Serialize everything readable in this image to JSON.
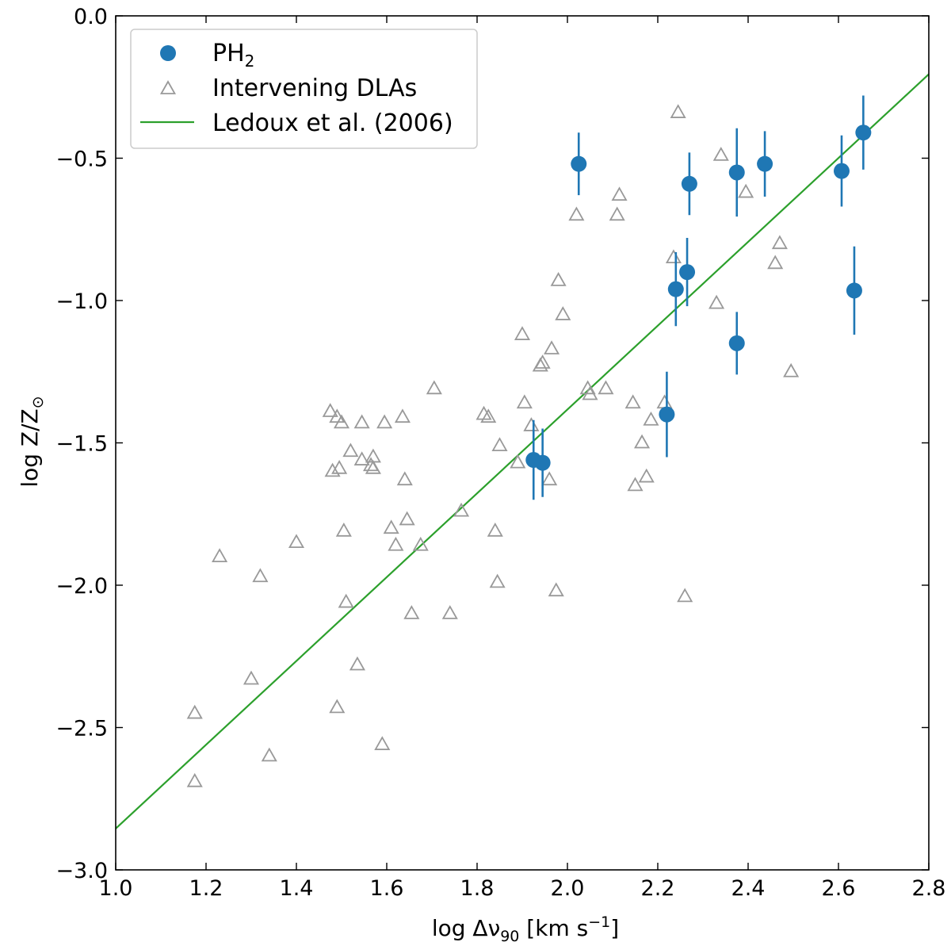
{
  "chart_data": {
    "type": "scatter",
    "xlabel": "log Δν",
    "xlabel_sub": "90",
    "xlabel_unit_open": " [km s",
    "xlabel_unit_sup": "−1",
    "xlabel_unit_close": "]",
    "ylabel": "log Z/Z",
    "ylabel_symbol": "⊙",
    "xlim": [
      1.0,
      2.8
    ],
    "ylim": [
      -3.0,
      0.0
    ],
    "xticks": [
      "1.0",
      "1.2",
      "1.4",
      "1.6",
      "1.8",
      "2.0",
      "2.2",
      "2.4",
      "2.6",
      "2.8"
    ],
    "yticks": [
      "0.0",
      "−0.5",
      "−1.0",
      "−1.5",
      "−2.0",
      "−2.5",
      "−3.0"
    ],
    "legend": {
      "position": "upper-left",
      "entries": [
        {
          "label": "PH",
          "sub": "2",
          "marker": "filled-circle",
          "color": "#1f77b4"
        },
        {
          "label": "Intervening DLAs",
          "marker": "open-triangle",
          "color": "#999999"
        },
        {
          "label": "Ledoux et al. (2006)",
          "marker": "line",
          "color": "#2ca02c"
        }
      ]
    },
    "series": [
      {
        "name": "PH2",
        "color": "#1f77b4",
        "x": [
          2.025,
          1.925,
          1.945,
          2.22,
          2.24,
          2.265,
          2.27,
          2.375,
          2.375,
          2.437,
          2.607,
          2.635,
          2.655
        ],
        "y": [
          -0.52,
          -1.56,
          -1.57,
          -1.4,
          -0.96,
          -0.9,
          -0.59,
          -0.55,
          -1.15,
          -0.52,
          -0.545,
          -0.965,
          -0.41
        ],
        "err": [
          0.11,
          0.14,
          0.12,
          0.15,
          0.13,
          0.12,
          0.11,
          0.155,
          0.11,
          0.115,
          0.125,
          0.155,
          0.13
        ]
      },
      {
        "name": "Intervening DLAs",
        "color": "#999999",
        "x": [
          1.175,
          1.175,
          1.23,
          1.3,
          1.32,
          1.34,
          1.4,
          1.475,
          1.48,
          1.49,
          1.49,
          1.495,
          1.5,
          1.505,
          1.51,
          1.52,
          1.535,
          1.545,
          1.545,
          1.565,
          1.57,
          1.57,
          1.59,
          1.595,
          1.61,
          1.62,
          1.635,
          1.64,
          1.645,
          1.655,
          1.675,
          1.705,
          1.74,
          1.765,
          1.815,
          1.825,
          1.84,
          1.845,
          1.85,
          1.89,
          1.9,
          1.905,
          1.92,
          1.94,
          1.945,
          1.96,
          1.965,
          1.975,
          1.98,
          1.99,
          2.02,
          2.045,
          2.05,
          2.085,
          2.11,
          2.115,
          2.145,
          2.15,
          2.165,
          2.175,
          2.185,
          2.215,
          2.235,
          2.245,
          2.26,
          2.33,
          2.34,
          2.395,
          2.46,
          2.47,
          2.495
        ],
        "y": [
          -2.45,
          -2.69,
          -1.9,
          -2.33,
          -1.97,
          -2.6,
          -1.85,
          -1.39,
          -1.6,
          -1.41,
          -2.43,
          -1.59,
          -1.43,
          -1.81,
          -2.06,
          -1.53,
          -2.28,
          -1.43,
          -1.56,
          -1.58,
          -1.59,
          -1.55,
          -2.56,
          -1.43,
          -1.8,
          -1.86,
          -1.41,
          -1.63,
          -1.77,
          -2.1,
          -1.86,
          -1.31,
          -2.1,
          -1.74,
          -1.4,
          -1.41,
          -1.81,
          -1.99,
          -1.51,
          -1.57,
          -1.12,
          -1.36,
          -1.44,
          -1.23,
          -1.22,
          -1.63,
          -1.17,
          -2.02,
          -0.93,
          -1.05,
          -0.7,
          -1.31,
          -1.33,
          -1.31,
          -0.7,
          -0.63,
          -1.36,
          -1.65,
          -1.5,
          -1.62,
          -1.42,
          -1.36,
          -0.85,
          -0.34,
          -2.04,
          -1.01,
          -0.49,
          -0.62,
          -0.87,
          -0.8,
          -1.25
        ]
      },
      {
        "name": "Ledoux et al. (2006)",
        "color": "#2ca02c",
        "type": "line",
        "x": [
          1.0,
          2.8
        ],
        "y": [
          -2.855,
          -0.205
        ]
      }
    ]
  }
}
